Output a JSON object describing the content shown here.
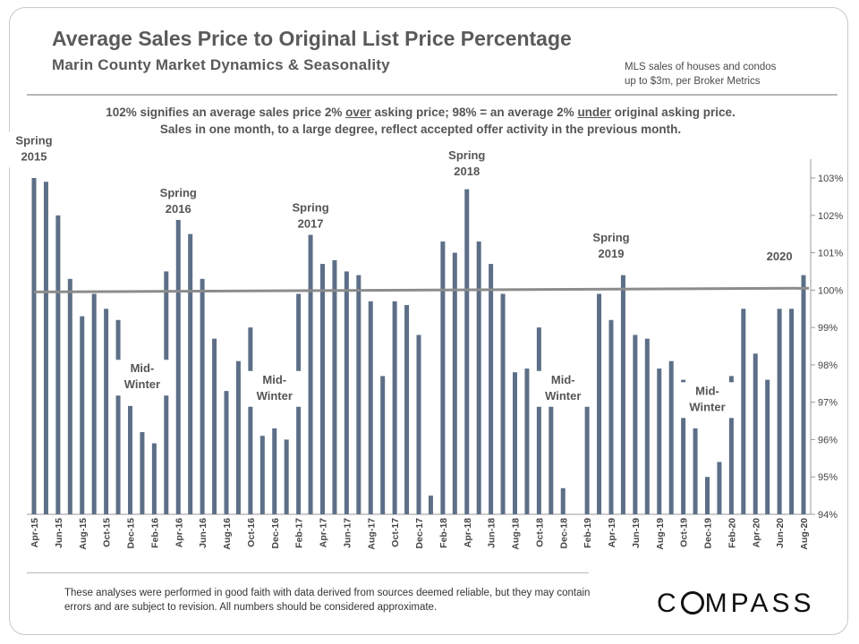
{
  "header": {
    "title": "Average Sales Price to Original List Price Percentage",
    "subtitle": "Marin County Market Dynamics & Seasonality",
    "note_line1": "MLS sales of houses and condos",
    "note_line2": "up to $3m, per Broker Metrics"
  },
  "description": {
    "part1": "102% signifies an average sales price 2% ",
    "over": "over",
    "part2": " asking price; 98% = an average 2% ",
    "under": "under",
    "part3": " original asking price. Sales in one month, to a large degree, reflect accepted offer activity in the previous month."
  },
  "footer": {
    "disclaimer": "These analyses were performed in good faith with data derived from sources deemed reliable, but they may contain errors and are subject to revision. All numbers should be considered approximate.",
    "logo_c": "C",
    "logo_rest": "MPASS"
  },
  "colors": {
    "bar": "#5c6f87",
    "trend": "#8c8c8c",
    "axis": "#9a9a9a",
    "text": "#444444"
  },
  "chart_data": {
    "type": "bar",
    "title": "Average Sales Price to Original List Price Percentage",
    "ylim": [
      94,
      103
    ],
    "yticks": [
      "94%",
      "95%",
      "96%",
      "97%",
      "98%",
      "99%",
      "100%",
      "101%",
      "102%",
      "103%"
    ],
    "categories": [
      "Apr-15",
      "May-15",
      "Jun-15",
      "Jul-15",
      "Aug-15",
      "Sep-15",
      "Oct-15",
      "Nov-15",
      "Dec-15",
      "Jan-16",
      "Feb-16",
      "Mar-16",
      "Apr-16",
      "May-16",
      "Jun-16",
      "Jul-16",
      "Aug-16",
      "Sep-16",
      "Oct-16",
      "Nov-16",
      "Dec-16",
      "Jan-17",
      "Feb-17",
      "Mar-17",
      "Apr-17",
      "May-17",
      "Jun-17",
      "Jul-17",
      "Aug-17",
      "Sep-17",
      "Oct-17",
      "Nov-17",
      "Dec-17",
      "Jan-18",
      "Feb-18",
      "Mar-18",
      "Apr-18",
      "May-18",
      "Jun-18",
      "Jul-18",
      "Aug-18",
      "Sep-18",
      "Oct-18",
      "Nov-18",
      "Dec-18",
      "Jan-19",
      "Feb-19",
      "Mar-19",
      "Apr-19",
      "May-19",
      "Jun-19",
      "Jul-19",
      "Aug-19",
      "Sep-19",
      "Oct-19",
      "Nov-19",
      "Dec-19",
      "Jan-20",
      "Feb-20",
      "Mar-20",
      "Apr-20",
      "May-20",
      "Jun-20",
      "Jul-20",
      "Aug-20"
    ],
    "values": [
      103.0,
      102.9,
      102.0,
      100.3,
      99.3,
      99.9,
      99.5,
      99.2,
      96.9,
      96.2,
      95.9,
      100.5,
      102.0,
      101.5,
      100.3,
      98.7,
      97.3,
      98.1,
      99.0,
      96.1,
      96.3,
      96.0,
      99.9,
      101.5,
      100.7,
      100.8,
      100.5,
      100.4,
      99.7,
      97.7,
      99.7,
      99.6,
      98.8,
      94.5,
      101.3,
      101.0,
      102.7,
      101.3,
      100.7,
      99.9,
      97.8,
      97.9,
      99.0,
      96.9,
      94.7,
      null,
      96.9,
      99.9,
      99.2,
      100.4,
      98.8,
      98.7,
      97.9,
      98.1,
      97.6,
      96.3,
      95.0,
      95.4,
      97.7,
      99.5,
      98.3,
      97.6,
      99.5,
      99.5,
      100.4
    ],
    "xtick_labels": [
      "Apr-15",
      "Jun-15",
      "Aug-15",
      "Oct-15",
      "Dec-15",
      "Feb-16",
      "Apr-16",
      "Jun-16",
      "Aug-16",
      "Oct-16",
      "Dec-16",
      "Feb-17",
      "Apr-17",
      "Jun-17",
      "Aug-17",
      "Oct-17",
      "Dec-17",
      "Feb-18",
      "Apr-18",
      "Jun-18",
      "Aug-18",
      "Oct-18",
      "Dec-18",
      "Feb-19",
      "Apr-19",
      "Jun-19",
      "Aug-19",
      "Oct-19",
      "Dec-19",
      "Feb-20",
      "Apr-20",
      "Jun-20",
      "Aug-20"
    ],
    "trendline": {
      "start": 99.95,
      "end": 100.05
    },
    "annotations": [
      {
        "index": 0,
        "lines": [
          "Spring",
          "2015"
        ],
        "value": 103.9
      },
      {
        "index": 12,
        "lines": [
          "Spring",
          "2016"
        ],
        "value": 102.5
      },
      {
        "index": 23,
        "lines": [
          "Spring",
          "2017"
        ],
        "value": 102.1
      },
      {
        "index": 36,
        "lines": [
          "Spring",
          "2018"
        ],
        "value": 103.5
      },
      {
        "index": 48,
        "lines": [
          "Spring",
          "2019"
        ],
        "value": 101.3
      },
      {
        "index": 62,
        "lines": [
          "2020"
        ],
        "value": 100.8
      },
      {
        "index": 9,
        "lines": [
          "Mid-",
          "Winter"
        ],
        "value": 97.8
      },
      {
        "index": 20,
        "lines": [
          "Mid-",
          "Winter"
        ],
        "value": 97.5
      },
      {
        "index": 44,
        "lines": [
          "Mid-",
          "Winter"
        ],
        "value": 97.5
      },
      {
        "index": 56,
        "lines": [
          "Mid-",
          "Winter"
        ],
        "value": 97.2
      }
    ]
  }
}
